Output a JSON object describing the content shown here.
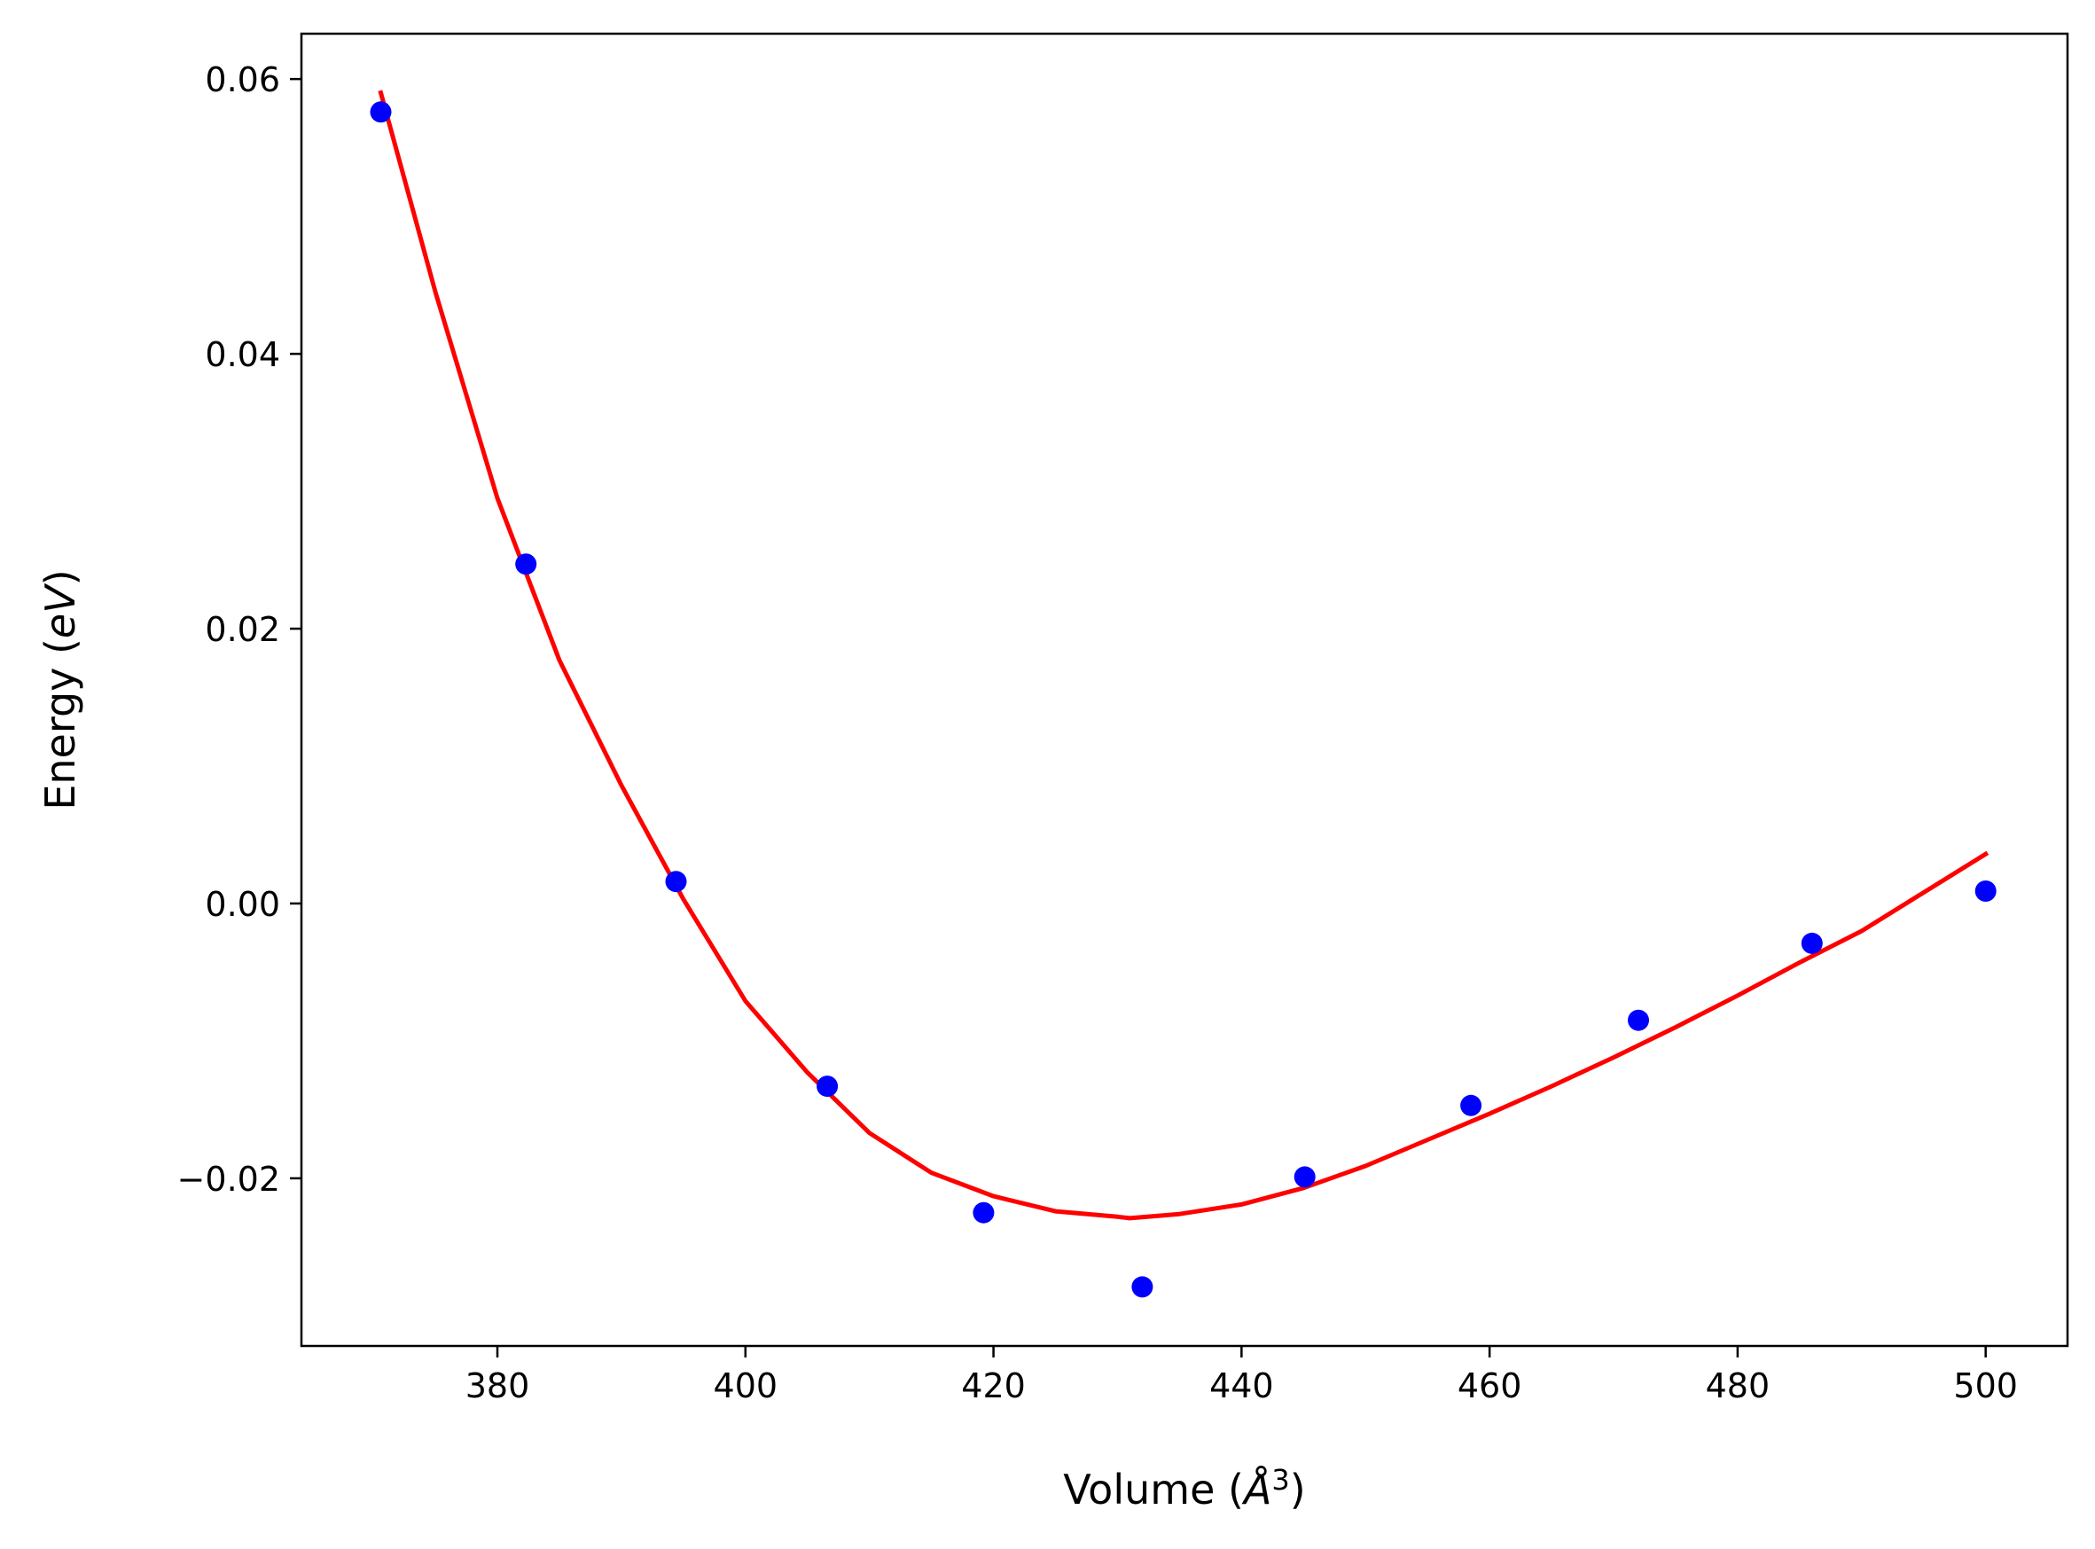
{
  "chart_data": {
    "type": "scatter",
    "title": "",
    "xlabel": {
      "prefix": "Volume (",
      "symbol": "Å",
      "superscript": "3",
      "suffix": ")"
    },
    "ylabel": {
      "prefix": "Energy (",
      "symbol": "eV",
      "suffix": ")"
    },
    "xlim": [
      364.2,
      506.6
    ],
    "ylim": [
      -0.0322,
      0.0633
    ],
    "x_ticks": [
      380,
      400,
      420,
      440,
      460,
      480,
      500
    ],
    "x_tick_labels": [
      "380",
      "400",
      "420",
      "440",
      "460",
      "480",
      "500"
    ],
    "y_ticks": [
      -0.02,
      0.0,
      0.02,
      0.04,
      0.06
    ],
    "y_tick_labels": [
      "−0.02",
      "0.00",
      "0.02",
      "0.04",
      "0.06"
    ],
    "grid": false,
    "legend": "none",
    "series": [
      {
        "kind": "points",
        "color": "#0000ff",
        "x": [
          370.6,
          382.3,
          394.4,
          406.6,
          419.2,
          432.0,
          445.1,
          458.5,
          472.0,
          486.0,
          500.0
        ],
        "y": [
          0.0576,
          0.0247,
          0.0016,
          -0.0133,
          -0.0225,
          -0.0279,
          -0.0199,
          -0.0147,
          -0.0085,
          -0.0029,
          0.0009
        ]
      },
      {
        "kind": "line",
        "color": "#ff0000",
        "x": [
          370.6,
          375,
          380,
          385,
          390,
          395,
          400,
          405,
          410,
          415,
          420,
          425,
          430,
          431,
          435,
          440,
          445,
          450,
          455,
          460,
          465,
          470,
          475,
          480,
          485,
          490,
          495,
          500
        ],
        "y": [
          0.059,
          0.0445,
          0.0295,
          0.0177,
          0.0086,
          0.0003,
          -0.0071,
          -0.0123,
          -0.0167,
          -0.0196,
          -0.0213,
          -0.0224,
          -0.0228,
          -0.0229,
          -0.0226,
          -0.0219,
          -0.0207,
          -0.0191,
          -0.0172,
          -0.0153,
          -0.0133,
          -0.0112,
          -0.009,
          -0.0067,
          -0.0043,
          -0.002,
          0.0008,
          0.0036
        ]
      }
    ]
  }
}
